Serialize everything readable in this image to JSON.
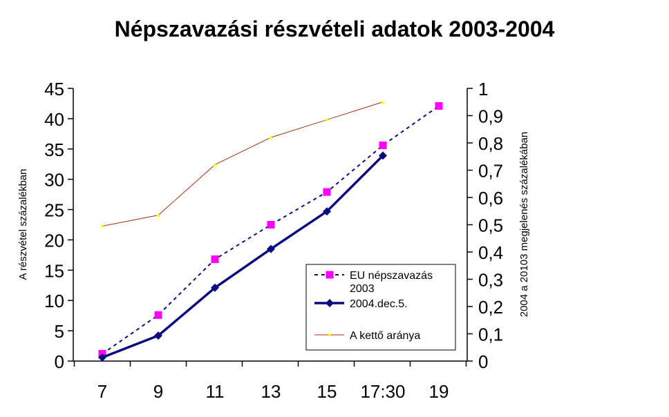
{
  "chart_data": {
    "type": "line",
    "title": "Népszavazási részvételi adatok 2003-2004",
    "ylabel": "A részvétel százalékban",
    "y2label": "2004 a 20103 megjelenés százalékában",
    "categories": [
      "7",
      "9",
      "11",
      "13",
      "15",
      "17:30",
      "19"
    ],
    "ylim": [
      0,
      45
    ],
    "yticks": [
      "0",
      "5",
      "10",
      "15",
      "20",
      "25",
      "30",
      "35",
      "40",
      "45"
    ],
    "y2lim": [
      0,
      1
    ],
    "y2ticks": [
      "0",
      "0,1",
      "0,2",
      "0,3",
      "0,4",
      "0,5",
      "0,6",
      "0,7",
      "0,8",
      "0,9",
      "1"
    ],
    "grid": false,
    "legend_position": "bottom-right",
    "series": [
      {
        "name": "EU népszavazás 2003",
        "axis": "left",
        "values": [
          1.2,
          7.6,
          16.8,
          22.5,
          27.9,
          35.6,
          42.1
        ],
        "color": "#0a0a80",
        "marker_color": "#ff00ff",
        "line_style": "dashed",
        "marker": "square"
      },
      {
        "name": "2004.dec.5.",
        "axis": "left",
        "values": [
          0.6,
          4.2,
          12.1,
          18.5,
          24.7,
          33.9,
          null
        ],
        "color": "#0a0a80",
        "marker_color": "#0a0a80",
        "line_style": "solid-thick",
        "marker": "diamond"
      },
      {
        "name": "A kettő aránya",
        "axis": "right",
        "values": [
          0.495,
          0.535,
          0.72,
          0.82,
          0.885,
          0.95,
          null
        ],
        "color": "#a03214",
        "marker_color": "#ffff00",
        "line_style": "solid-thin",
        "marker": "triangle"
      }
    ]
  }
}
